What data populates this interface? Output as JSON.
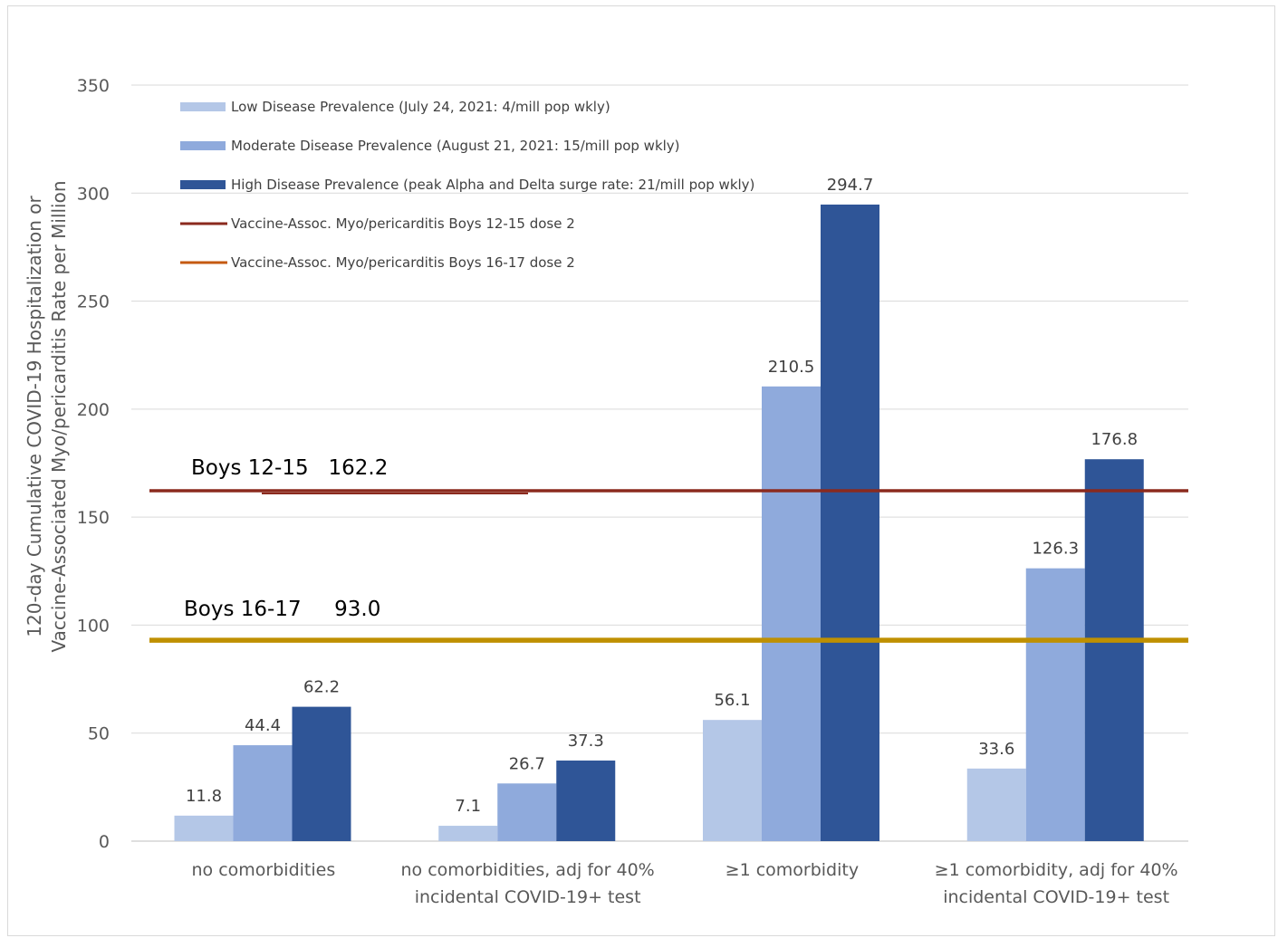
{
  "chart_data": {
    "type": "bar",
    "ylabel_line1": "120-day Cumulative COVID-19 Hospitalization or",
    "ylabel_line2": "Vaccine-Associated Myo/pericarditis Rate per Million",
    "ylim": [
      0,
      350
    ],
    "yticks": [
      "0",
      "50",
      "100",
      "150",
      "200",
      "250",
      "300",
      "350"
    ],
    "grid": true,
    "legend_position": "top-left",
    "categories": [
      [
        "no comorbidities"
      ],
      [
        "no comorbidities, adj for 40%",
        "incidental COVID-19+ test"
      ],
      [
        "≥1 comorbidity"
      ],
      [
        "≥1 comorbidity, adj for 40%",
        "incidental COVID-19+ test"
      ]
    ],
    "series": [
      {
        "name": "Low Disease Prevalence (July 24, 2021: 4/mill pop wkly)",
        "color": "#b4c7e7",
        "values": [
          11.8,
          7.1,
          56.1,
          33.6
        ],
        "labels": [
          "11.8",
          "7.1",
          "56.1",
          "33.6"
        ]
      },
      {
        "name": "Moderate Disease Prevalence (August 21, 2021: 15/mill pop wkly)",
        "color": "#8faadc",
        "values": [
          44.4,
          26.7,
          210.5,
          126.3
        ],
        "labels": [
          "44.4",
          "26.7",
          "210.5",
          "126.3"
        ]
      },
      {
        "name": "High Disease Prevalence (peak Alpha and Delta surge rate: 21/mill pop wkly)",
        "color": "#2f5597",
        "values": [
          62.2,
          37.3,
          294.7,
          176.8
        ],
        "labels": [
          "62.2",
          "37.3",
          "294.7",
          "176.8"
        ]
      }
    ],
    "reference_lines": [
      {
        "name": "Vaccine-Assoc. Myo/pericarditis Boys 12-15 dose 2",
        "value": 162.2,
        "color": "#8b2a1e",
        "annotation": "Boys 12-15   162.2"
      },
      {
        "name": "Vaccine-Assoc. Myo/pericarditis Boys 16-17 dose 2",
        "value": 93.0,
        "color": "#c55a11",
        "plot_color": "#bf9000",
        "annotation": "Boys 16-17     93.0"
      }
    ]
  }
}
